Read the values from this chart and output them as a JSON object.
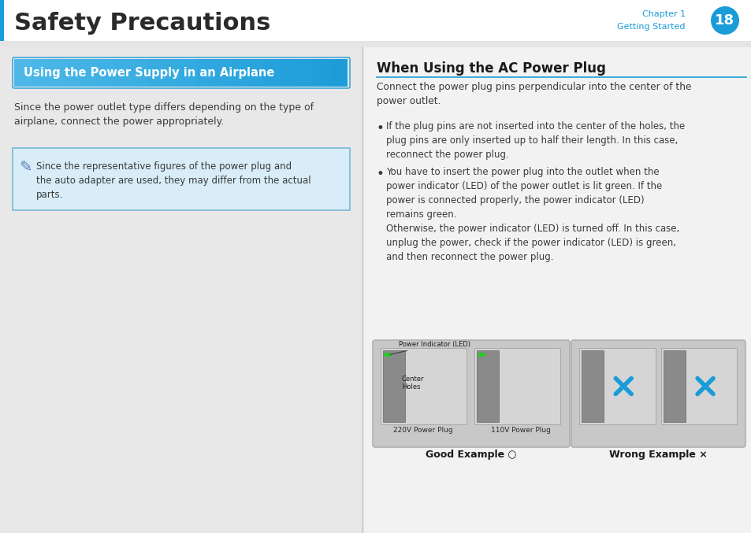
{
  "title": "Safety Precautions",
  "chapter_label": "Chapter 1",
  "chapter_sub": "Getting Started",
  "page_number": "18",
  "header_bg": "#ffffff",
  "header_text_color": "#2d2d2d",
  "chapter_color": "#1a9cd8",
  "left_panel_bg": "#e0e0e0",
  "right_panel_bg": "#f0f0f0",
  "blue_banner_text": "Using the Power Supply in an Airplane",
  "blue_banner_bg_top": "#4db8e8",
  "blue_banner_bg_bottom": "#1a9cd8",
  "left_body_text1": "Since the power outlet type differs depending on the type of\nairplane, connect the power appropriately.",
  "note_bg": "#d0e8f5",
  "note_border": "#5aaad0",
  "note_text": "Since the representative figures of the power plug and\nthe auto adapter are used, they may differ from the actual\nparts.",
  "right_title": "When Using the AC Power Plug",
  "right_title_underline": "#1a9cd8",
  "right_intro": "Connect the power plug pins perpendicular into the center of the\npower outlet.",
  "bullet1": "If the plug pins are not inserted into the center of the holes, the\nplug pins are only inserted up to half their length. In this case,\nreconnect the power plug.",
  "bullet2": "You have to insert the power plug into the outlet when the\npower indicator (LED) of the power outlet is lit green. If the\npower is connected properly, the power indicator (LED)\nremains green.\nOtherwise, the power indicator (LED) is turned off. In this case,\nunplug the power, check if the power indicator (LED) is green,\nand then reconnect the power plug.",
  "good_label": "Good Example",
  "wrong_label": "Wrong Example",
  "image_box_bg": "#d8d8d8",
  "divider_color": "#aaaaaa",
  "text_color": "#3a3a3a",
  "body_fontsize": 8.5,
  "banner_fontsize": 10.5,
  "title_fontsize": 12
}
